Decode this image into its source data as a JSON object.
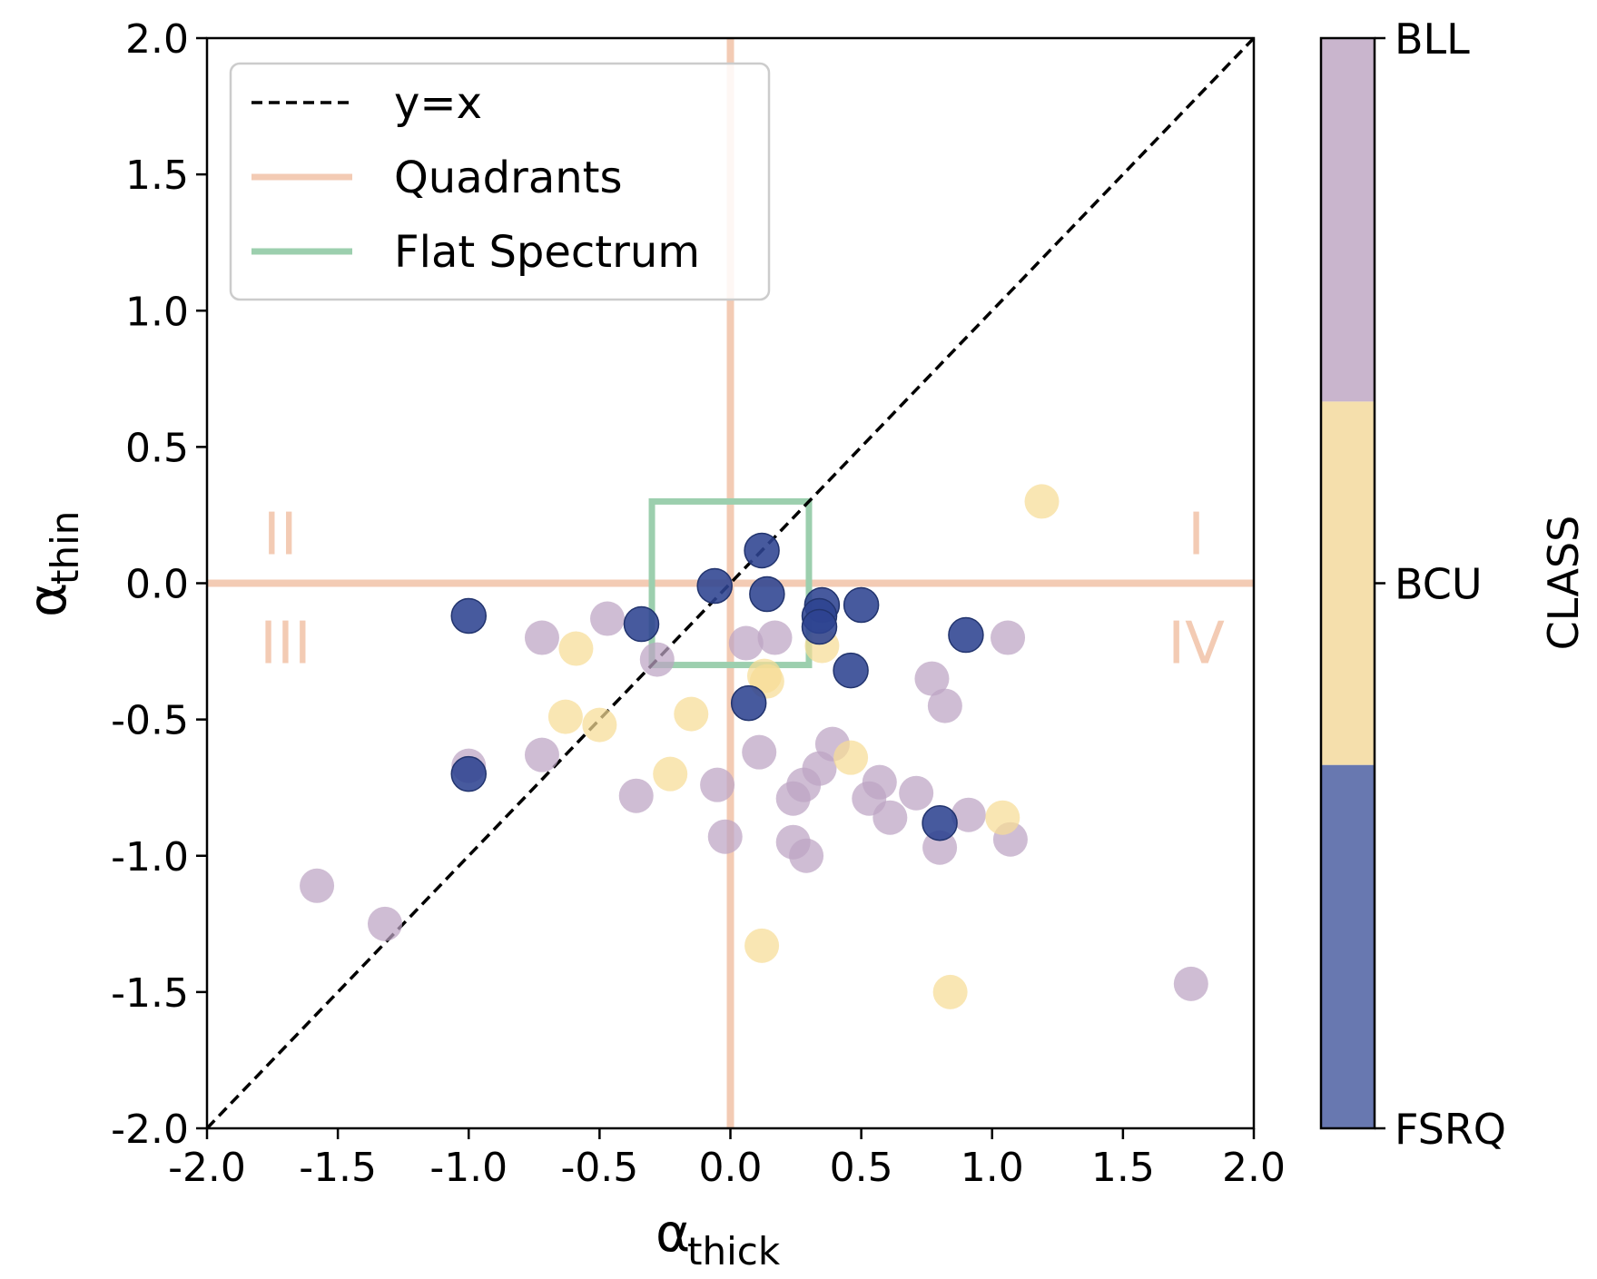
{
  "chart_data": {
    "type": "scatter",
    "xlabel": {
      "symbol": "α",
      "subscript": "thick"
    },
    "ylabel": {
      "symbol": "α",
      "subscript": "thin"
    },
    "xlim": [
      -2.0,
      2.0
    ],
    "ylim": [
      -2.0,
      2.0
    ],
    "x_ticks": [
      "-2.0",
      "-1.5",
      "-1.0",
      "-0.5",
      "0.0",
      "0.5",
      "1.0",
      "1.5",
      "2.0"
    ],
    "y_ticks": [
      "-2.0",
      "-1.5",
      "-1.0",
      "-0.5",
      "0.0",
      "0.5",
      "1.0",
      "1.5",
      "2.0"
    ],
    "grid": false,
    "legend": {
      "placement": "upper-left",
      "entries": [
        {
          "label": "y=x",
          "style": "dashed",
          "color": "#000000"
        },
        {
          "label": "Quadrants",
          "style": "solid",
          "color": "#f3cbb4"
        },
        {
          "label": "Flat Spectrum",
          "style": "solid",
          "color": "#9ccfae"
        }
      ]
    },
    "reference_lines": {
      "identity": {
        "from": [
          -2.0,
          -2.0
        ],
        "to": [
          2.0,
          2.0
        ],
        "label": "y=x"
      },
      "quadrant_x": 0.0,
      "quadrant_y": 0.0,
      "flat_spectrum_box": {
        "x_range": [
          -0.3,
          0.3
        ],
        "y_range": [
          -0.3,
          0.3
        ]
      }
    },
    "quadrant_labels": [
      {
        "text": "I",
        "x": 1.78,
        "y": 0.18
      },
      {
        "text": "II",
        "x": -1.72,
        "y": 0.18
      },
      {
        "text": "III",
        "x": -1.7,
        "y": -0.22
      },
      {
        "text": "IV",
        "x": 1.78,
        "y": -0.22
      }
    ],
    "colorbar": {
      "label": "CLASS",
      "categories": [
        "FSRQ",
        "BCU",
        "BLL"
      ],
      "colors": {
        "FSRQ": "#6878b0",
        "BCU": "#f5dfac",
        "BLL": "#c9b5cd"
      }
    },
    "marker_colors": {
      "FSRQ": "#2e4391",
      "BCU": "#f6dd96",
      "BLL": "#bca4c4"
    },
    "series": [
      {
        "name": "BLL",
        "points": [
          [
            -1.58,
            -1.11
          ],
          [
            -1.32,
            -1.25
          ],
          [
            -1.0,
            -0.67
          ],
          [
            -0.72,
            -0.2
          ],
          [
            -0.72,
            -0.63
          ],
          [
            -0.47,
            -0.13
          ],
          [
            -0.28,
            -0.28
          ],
          [
            -0.36,
            -0.78
          ],
          [
            -0.05,
            -0.74
          ],
          [
            -0.02,
            -0.93
          ],
          [
            0.06,
            -0.22
          ],
          [
            0.11,
            -0.62
          ],
          [
            0.17,
            -0.2
          ],
          [
            0.24,
            -0.79
          ],
          [
            0.28,
            -0.74
          ],
          [
            0.24,
            -0.95
          ],
          [
            0.29,
            -1.0
          ],
          [
            0.34,
            -0.68
          ],
          [
            0.39,
            -0.59
          ],
          [
            0.53,
            -0.79
          ],
          [
            0.57,
            -0.73
          ],
          [
            0.61,
            -0.86
          ],
          [
            0.71,
            -0.77
          ],
          [
            0.77,
            -0.35
          ],
          [
            0.82,
            -0.45
          ],
          [
            0.8,
            -0.97
          ],
          [
            0.91,
            -0.85
          ],
          [
            1.06,
            -0.2
          ],
          [
            1.07,
            -0.94
          ],
          [
            1.76,
            -1.47
          ]
        ]
      },
      {
        "name": "BCU",
        "points": [
          [
            1.19,
            0.3
          ],
          [
            0.35,
            -0.23
          ],
          [
            -0.59,
            -0.24
          ],
          [
            -0.63,
            -0.49
          ],
          [
            -0.5,
            -0.52
          ],
          [
            -0.15,
            -0.48
          ],
          [
            -0.23,
            -0.7
          ],
          [
            0.13,
            -0.34
          ],
          [
            0.14,
            -0.36
          ],
          [
            0.46,
            -0.64
          ],
          [
            1.04,
            -0.86
          ],
          [
            0.12,
            -1.33
          ],
          [
            0.84,
            -1.5
          ]
        ]
      },
      {
        "name": "FSRQ",
        "points": [
          [
            0.12,
            0.12
          ],
          [
            -0.06,
            -0.01
          ],
          [
            0.14,
            -0.04
          ],
          [
            0.35,
            -0.08
          ],
          [
            0.5,
            -0.08
          ],
          [
            0.34,
            -0.12
          ],
          [
            0.34,
            -0.16
          ],
          [
            -0.34,
            -0.15
          ],
          [
            -1.0,
            -0.12
          ],
          [
            0.9,
            -0.19
          ],
          [
            0.46,
            -0.32
          ],
          [
            0.07,
            -0.44
          ],
          [
            -1.0,
            -0.7
          ],
          [
            0.8,
            -0.88
          ]
        ]
      }
    ]
  }
}
